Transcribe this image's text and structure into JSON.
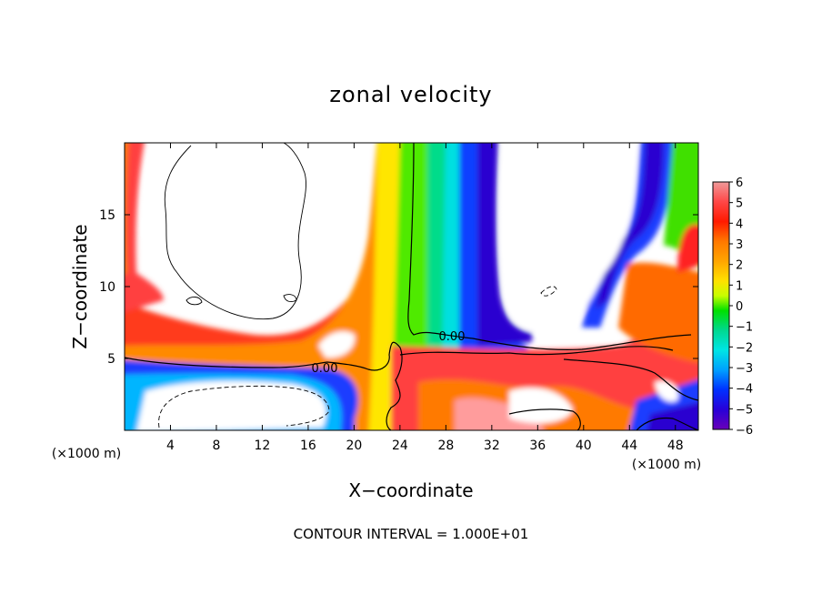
{
  "chart_data": {
    "type": "heatmap",
    "title": "zonal velocity",
    "xlabel": "X−coordinate",
    "ylabel": "Z−coordinate",
    "x_unit": "(×1000 m)",
    "z_unit": "(×1000 m)",
    "xlim": [
      0,
      50
    ],
    "ylim": [
      0,
      20
    ],
    "x_ticks": [
      4,
      8,
      12,
      16,
      20,
      24,
      28,
      32,
      36,
      40,
      44,
      48
    ],
    "y_ticks": [
      5,
      10,
      15
    ],
    "colorbar_ticks": [
      6,
      5,
      4,
      3,
      2,
      1,
      0,
      -1,
      -2,
      -3,
      -4,
      -5,
      -6
    ],
    "colorbar_tick_labels": [
      "6",
      "5",
      "4",
      "3",
      "2",
      "1",
      "0",
      "−1",
      "−2",
      "−3",
      "−4",
      "−5",
      "−6"
    ],
    "colorbar_range": [
      -6,
      6
    ],
    "colorbar_colors": [
      "#ef9a9a",
      "#ff4747",
      "#ff1a00",
      "#ff7800",
      "#ffa500",
      "#ffd700",
      "#ffff00",
      "#c8ff00",
      "#7fff00",
      "#00e600",
      "#00d87a",
      "#00e5e5",
      "#00aaff",
      "#005eff",
      "#0018ff",
      "#2800d8",
      "#6a00b8"
    ],
    "contour_labels": [
      "0.00",
      "0.00"
    ],
    "contour_interval_text": "CONTOUR INTERVAL = 1.000E+01"
  }
}
